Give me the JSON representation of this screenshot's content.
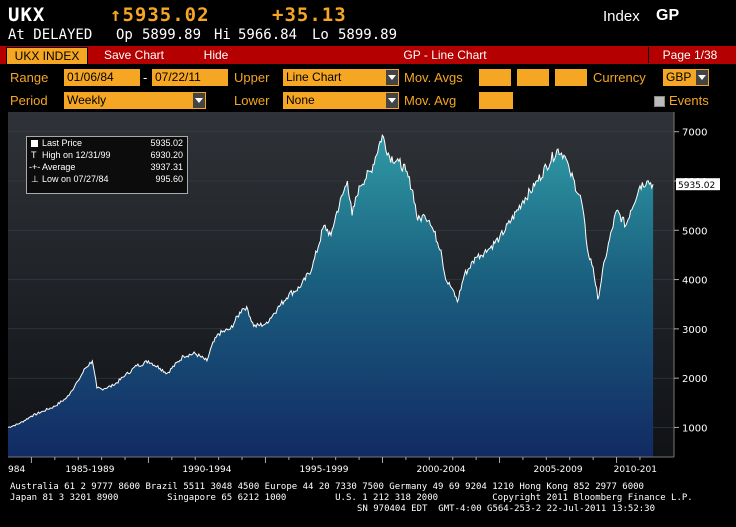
{
  "header": {
    "ticker": "UKX",
    "price": "↑5935.02",
    "change": "+35.13",
    "type_label": "Index",
    "market": "GP",
    "status": "At DELAYED",
    "open_label": "Op",
    "open": "5899.89",
    "high_label": "Hi",
    "high": "5966.84",
    "low_label": "Lo",
    "low": "5899.89"
  },
  "toolbar": {
    "security_tab": "UKX INDEX",
    "save_chart": "Save Chart",
    "hide": "Hide",
    "title": "GP - Line Chart",
    "page": "Page 1/38"
  },
  "controls": {
    "range_label": "Range",
    "range_start": "01/06/84",
    "range_sep": "-",
    "range_end": "07/22/11",
    "upper_label": "Upper",
    "upper_value": "Line Chart",
    "movavgs_label": "Mov. Avgs",
    "currency_label": "Currency",
    "currency_value": "GBP",
    "period_label": "Period",
    "period_value": "Weekly",
    "lower_label": "Lower",
    "lower_value": "None",
    "movavg_label": "Mov. Avg",
    "events_label": "Events"
  },
  "legend": {
    "last_price_label": "Last Price",
    "last_price_value": "5935.02",
    "high_label": "High on 12/31/99",
    "high_value": "6930.20",
    "average_label": "Average",
    "average_value": "3937.31",
    "low_label": "Low on 07/27/84",
    "low_value": "995.60"
  },
  "chart_data": {
    "type": "area",
    "ylim": [
      400,
      7400
    ],
    "xlim": [
      1984.0,
      2011.6
    ],
    "y_ticks": [
      1000,
      2000,
      3000,
      4000,
      5000,
      6000,
      7000
    ],
    "x_tick_labels": [
      "984",
      "1985-1989",
      "1990-1994",
      "1995-1999",
      "2000-2004",
      "2005-2009",
      "2010-201"
    ],
    "x_tick_positions": [
      1984.2,
      1987.5,
      1992.5,
      1997.5,
      2002.5,
      2007.5,
      2010.8
    ],
    "last_value_label": "5935.02",
    "series": [
      {
        "x": [
          1984.0,
          1984.5,
          1985.0,
          1985.5,
          1986.0,
          1986.5,
          1987.0,
          1987.3,
          1987.6,
          1987.8,
          1988.0,
          1988.5,
          1989.0,
          1989.5,
          1989.8,
          1990.0,
          1990.5,
          1990.8,
          1991.0,
          1991.5,
          1992.0,
          1992.5,
          1992.7,
          1993.0,
          1993.5,
          1994.0,
          1994.2,
          1994.5,
          1995.0,
          1995.5,
          1996.0,
          1996.5,
          1997.0,
          1997.5,
          1997.8,
          1998.0,
          1998.5,
          1998.7,
          1999.0,
          1999.5,
          1999.99,
          2000.3,
          2000.7,
          2001.0,
          2001.3,
          2001.5,
          2001.8,
          2002.0,
          2002.5,
          2002.7,
          2003.0,
          2003.2,
          2003.5,
          2004.0,
          2004.5,
          2005.0,
          2005.5,
          2006.0,
          2006.5,
          2007.0,
          2007.5,
          2007.8,
          2008.0,
          2008.5,
          2008.8,
          2009.0,
          2009.2,
          2009.5,
          2010.0,
          2010.4,
          2010.6,
          2011.0,
          2011.3,
          2011.56
        ],
        "y": [
          1000,
          1080,
          1230,
          1330,
          1430,
          1600,
          1950,
          2200,
          2350,
          1800,
          1780,
          1850,
          2050,
          2250,
          2300,
          2350,
          2200,
          2100,
          2200,
          2450,
          2500,
          2350,
          2650,
          2900,
          3000,
          3400,
          3450,
          3050,
          3100,
          3400,
          3700,
          3850,
          4250,
          5100,
          4900,
          5300,
          6000,
          5300,
          5900,
          6200,
          6930,
          6500,
          6400,
          6200,
          5800,
          5200,
          5300,
          5200,
          4600,
          4000,
          3800,
          3550,
          4100,
          4450,
          4600,
          4850,
          5200,
          5600,
          5900,
          6300,
          6650,
          6500,
          6200,
          5600,
          4500,
          4250,
          3600,
          4400,
          5400,
          5100,
          5400,
          5900,
          6000,
          5935
        ]
      }
    ]
  },
  "footer": {
    "line1": "Australia 61 2 9777 8600 Brazil 5511 3048 4500 Europe 44 20 7330 7500 Germany 49 69 9204 1210 Hong Kong 852 2977 6000",
    "line2": "Japan 81 3 3201 8900         Singapore 65 6212 1000         U.S. 1 212 318 2000          Copyright 2011 Bloomberg Finance L.P.",
    "line3": "SN 970404 EDT  GMT-4:00 G564-253-2 22-Jul-2011 13:52:30"
  }
}
